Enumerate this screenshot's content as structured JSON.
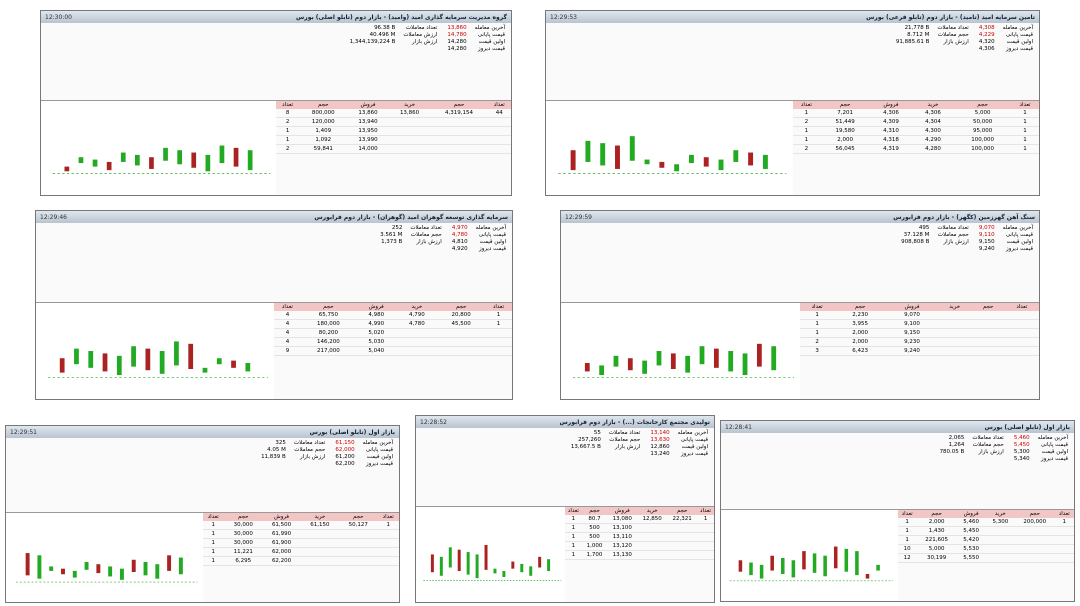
{
  "panels": [
    {
      "title": "گروه مدیریت سرمایه گذاری امید (وامید) - بازار دوم (تابلو اصلی) بورس",
      "time": "12:30:00",
      "info": [
        [
          "آخرین معامله",
          "13,860"
        ],
        [
          "قیمت پایانی",
          "14,780"
        ],
        [
          "اولین قیمت",
          "14,280"
        ],
        [
          "قیمت دیروز",
          "14,280"
        ]
      ],
      "stats": [
        [
          "تعداد معاملات",
          "96.38 B"
        ],
        [
          "ارزش معاملات",
          "40.496 M"
        ],
        [
          "ارزش بازار",
          "1,344,139,224 B"
        ]
      ],
      "headers": [
        "تعداد",
        "حجم",
        "فروش",
        "خرید",
        "حجم",
        "تعداد"
      ],
      "rows": [
        [
          "8",
          "800,000",
          "13,860",
          "13,860",
          "4,319,154",
          "44"
        ],
        [
          "2",
          "120,000",
          "13,940",
          "",
          "",
          ""
        ],
        [
          "1",
          "1,409",
          "13,950",
          "",
          "",
          ""
        ],
        [
          "1",
          "1,092",
          "13,990",
          "",
          "",
          ""
        ],
        [
          "2",
          "59,841",
          "14,000",
          "",
          "",
          ""
        ]
      ]
    },
    {
      "title": "تامین سرمایه امید (تامید) - بازار دوم (تابلو فرعی) بورس",
      "time": "12:29:53",
      "info": [
        [
          "آخرین معامله",
          "4,308"
        ],
        [
          "قیمت پایانی",
          "4,229"
        ],
        [
          "اولین قیمت",
          "4,320"
        ],
        [
          "قیمت دیروز",
          "4,306"
        ]
      ],
      "stats": [
        [
          "تعداد معاملات",
          "21,778 B"
        ],
        [
          "حجم معاملات",
          "8.712 M"
        ],
        [
          "ارزش بازار",
          "91,885.61 B"
        ]
      ],
      "headers": [
        "تعداد",
        "حجم",
        "فروش",
        "خرید",
        "حجم",
        "تعداد"
      ],
      "rows": [
        [
          "1",
          "7,201",
          "4,306",
          "4,306",
          "5,000",
          "1"
        ],
        [
          "2",
          "51,449",
          "4,309",
          "4,304",
          "50,000",
          "1"
        ],
        [
          "1",
          "19,580",
          "4,310",
          "4,300",
          "95,000",
          "1"
        ],
        [
          "1",
          "2,000",
          "4,318",
          "4,290",
          "100,000",
          "1"
        ],
        [
          "2",
          "56,045",
          "4,319",
          "4,280",
          "100,000",
          "1"
        ]
      ]
    },
    {
      "title": "سرمایه گذاری توسعه گوهران امید (گوهران) - بازار دوم فرابورس",
      "time": "12:29:46",
      "info": [
        [
          "آخرین معامله",
          "4,970"
        ],
        [
          "قیمت پایانی",
          "4,780"
        ],
        [
          "اولین قیمت",
          "4,810"
        ],
        [
          "قیمت دیروز",
          "4,920"
        ]
      ],
      "stats": [
        [
          "تعداد معاملات",
          "252"
        ],
        [
          "حجم معاملات",
          "3.561 M"
        ],
        [
          "ارزش بازار",
          "1,373 B"
        ]
      ],
      "headers": [
        "تعداد",
        "حجم",
        "فروش",
        "خرید",
        "حجم",
        "تعداد"
      ],
      "rows": [
        [
          "4",
          "65,750",
          "4,980",
          "4,790",
          "20,800",
          "1"
        ],
        [
          "4",
          "180,000",
          "4,990",
          "4,780",
          "45,500",
          "1"
        ],
        [
          "4",
          "80,200",
          "5,020",
          "",
          "",
          ""
        ],
        [
          "4",
          "146,200",
          "5,030",
          "",
          "",
          ""
        ],
        [
          "9",
          "217,000",
          "5,040",
          "",
          "",
          ""
        ]
      ]
    },
    {
      "title": "سنگ آهن گهرزمین (کگهر) - بازار دوم فرابورس",
      "time": "12:29:59",
      "info": [
        [
          "آخرین معامله",
          "9,070"
        ],
        [
          "قیمت پایانی",
          "9,110"
        ],
        [
          "اولین قیمت",
          "9,150"
        ],
        [
          "قیمت دیروز",
          "9,240"
        ]
      ],
      "stats": [
        [
          "تعداد معاملات",
          "495"
        ],
        [
          "حجم معاملات",
          "37.128 M"
        ],
        [
          "ارزش بازار",
          "908,808 B"
        ]
      ],
      "headers": [
        "تعداد",
        "حجم",
        "فروش",
        "خرید",
        "حجم",
        "تعداد"
      ],
      "rows": [
        [
          "1",
          "2,230",
          "9,070",
          "",
          "",
          ""
        ],
        [
          "1",
          "3,955",
          "9,100",
          "",
          "",
          ""
        ],
        [
          "1",
          "2,000",
          "9,150",
          "",
          "",
          ""
        ],
        [
          "2",
          "2,000",
          "9,230",
          "",
          "",
          ""
        ],
        [
          "3",
          "6,423",
          "9,240",
          "",
          "",
          ""
        ]
      ]
    },
    {
      "title": "بازار اول (تابلو اصلی) بورس",
      "time": "12:29:51",
      "info": [
        [
          "آخرین معامله",
          "61,150"
        ],
        [
          "قیمت پایانی",
          "62,000"
        ],
        [
          "اولین قیمت",
          "61,200"
        ],
        [
          "قیمت دیروز",
          "62,200"
        ]
      ],
      "stats": [
        [
          "تعداد معاملات",
          "325"
        ],
        [
          "حجم معاملات",
          "4.05 M"
        ],
        [
          "ارزش بازار",
          "11,839 B"
        ]
      ],
      "headers": [
        "تعداد",
        "حجم",
        "فروش",
        "خرید",
        "حجم",
        "تعداد"
      ],
      "rows": [
        [
          "1",
          "30,000",
          "61,500",
          "61,150",
          "50,127",
          "1"
        ],
        [
          "1",
          "30,000",
          "61,990",
          "",
          "",
          ""
        ],
        [
          "1",
          "30,000",
          "61,900",
          "",
          "",
          ""
        ],
        [
          "1",
          "11,221",
          "62,000",
          "",
          "",
          ""
        ],
        [
          "1",
          "6,295",
          "62,200",
          "",
          "",
          ""
        ]
      ]
    },
    {
      "title": "تولیدی مجتمع کارخانجات (...) - بازار دوم فرابورس",
      "time": "12:28:52",
      "info": [
        [
          "آخرین معامله",
          "13,140"
        ],
        [
          "قیمت پایانی",
          "13,630"
        ],
        [
          "اولین قیمت",
          "12,860"
        ],
        [
          "قیمت دیروز",
          "13,240"
        ]
      ],
      "stats": [
        [
          "تعداد معاملات",
          "55"
        ],
        [
          "حجم معاملات",
          "257,260"
        ],
        [
          "ارزش بازار",
          "13,667.5 B"
        ]
      ],
      "headers": [
        "تعداد",
        "حجم",
        "فروش",
        "خرید",
        "حجم",
        "تعداد"
      ],
      "rows": [
        [
          "1",
          "80.7",
          "13,080",
          "12,850",
          "22,321",
          "1"
        ],
        [
          "1",
          "500",
          "13,100",
          "",
          "",
          ""
        ],
        [
          "1",
          "500",
          "13,110",
          "",
          "",
          ""
        ],
        [
          "1",
          "1,000",
          "13,120",
          "",
          "",
          ""
        ],
        [
          "1",
          "1,700",
          "13,130",
          "",
          "",
          ""
        ]
      ]
    },
    {
      "title": "بازار اول (تابلو اصلی) بورس",
      "time": "12:28:41",
      "info": [
        [
          "آخرین معامله",
          "5,460"
        ],
        [
          "قیمت پایانی",
          "5,450"
        ],
        [
          "اولین قیمت",
          "5,300"
        ],
        [
          "قیمت دیروز",
          "5,340"
        ]
      ],
      "stats": [
        [
          "تعداد معاملات",
          "2,065"
        ],
        [
          "حجم معاملات",
          "1,264"
        ],
        [
          "ارزش بازار",
          "780.05 B"
        ]
      ],
      "headers": [
        "تعداد",
        "حجم",
        "فروش",
        "خرید",
        "حجم",
        "تعداد"
      ],
      "rows": [
        [
          "1",
          "2,000",
          "5,460",
          "5,300",
          "200,000",
          "1"
        ],
        [
          "1",
          "1,430",
          "5,450",
          "",
          "",
          ""
        ],
        [
          "1",
          "221,605",
          "5,420",
          "",
          "",
          ""
        ],
        [
          "10",
          "5,000",
          "5,530",
          "",
          "",
          ""
        ],
        [
          "12",
          "30,199",
          "5,550",
          "",
          "",
          ""
        ]
      ]
    }
  ]
}
